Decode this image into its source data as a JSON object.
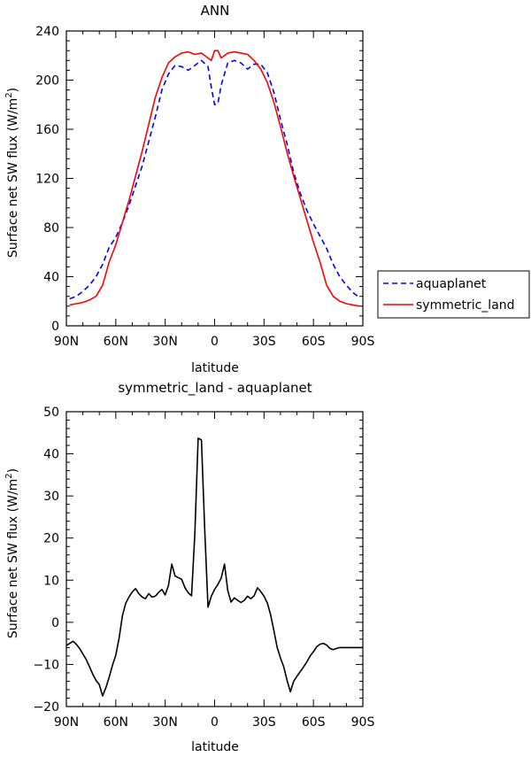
{
  "chart_data": [
    {
      "type": "line",
      "title": "ANN",
      "xlabel": "latitude",
      "ylabel": "Surface net SW flux (W/m²)",
      "ylabel_main": "Surface net SW flux (W/m",
      "ylabel_sup": "2",
      "ylabel_end": ")",
      "xlim": [
        -90,
        90
      ],
      "ylim": [
        0,
        240
      ],
      "x_ticks": [
        -90,
        -60,
        -30,
        0,
        30,
        60,
        90
      ],
      "x_tick_labels": [
        "90N",
        "60N",
        "30N",
        "0",
        "30S",
        "60S",
        "90S"
      ],
      "y_ticks": [
        0,
        40,
        80,
        120,
        160,
        200,
        240
      ],
      "y_tick_labels": [
        "0",
        "40",
        "80",
        "120",
        "160",
        "200",
        "240"
      ],
      "legend_position": "right",
      "series": [
        {
          "name": "aquaplanet",
          "color": "#0000ff",
          "dash": "dashed",
          "x": [
            -88,
            -84,
            -80,
            -76,
            -72,
            -68,
            -64,
            -60,
            -56,
            -52,
            -48,
            -44,
            -40,
            -36,
            -32,
            -28,
            -24,
            -20,
            -16,
            -12,
            -8,
            -4,
            -2,
            0,
            2,
            4,
            8,
            12,
            16,
            20,
            24,
            28,
            32,
            36,
            40,
            44,
            48,
            52,
            56,
            60,
            64,
            68,
            72,
            76,
            80,
            84,
            88
          ],
          "y": [
            22,
            24,
            28,
            33,
            40,
            50,
            64,
            72,
            84,
            98,
            114,
            130,
            150,
            170,
            192,
            205,
            212,
            211,
            208,
            212,
            216,
            211,
            194,
            180,
            181,
            196,
            214,
            216,
            214,
            209,
            213,
            213,
            206,
            190,
            168,
            148,
            125,
            108,
            94,
            83,
            73,
            63,
            50,
            40,
            33,
            27,
            23
          ]
        },
        {
          "name": "symmetric_land",
          "color": "#ff0000",
          "dash": "solid",
          "x": [
            -88,
            -84,
            -80,
            -76,
            -72,
            -68,
            -64,
            -60,
            -56,
            -52,
            -48,
            -44,
            -40,
            -36,
            -32,
            -28,
            -24,
            -20,
            -16,
            -12,
            -8,
            -4,
            -2,
            0,
            2,
            4,
            8,
            12,
            16,
            20,
            24,
            28,
            32,
            36,
            40,
            44,
            48,
            52,
            56,
            60,
            64,
            68,
            72,
            76,
            80,
            84,
            88
          ],
          "y": [
            17,
            18,
            19,
            21,
            24,
            33,
            52,
            66,
            84,
            102,
            122,
            142,
            164,
            186,
            202,
            214,
            219,
            222,
            223,
            221,
            222,
            218,
            216,
            224,
            224,
            218,
            222,
            223,
            222,
            221,
            216,
            209,
            198,
            182,
            162,
            141,
            122,
            104,
            86,
            68,
            52,
            33,
            24,
            20,
            18,
            17,
            16
          ]
        }
      ]
    },
    {
      "type": "line",
      "title": "symmetric_land - aquaplanet",
      "xlabel": "latitude",
      "ylabel": "Surface net SW flux (W/m²)",
      "ylabel_main": "Surface net SW flux (W/m",
      "ylabel_sup": "2",
      "ylabel_end": ")",
      "xlim": [
        -90,
        90
      ],
      "ylim": [
        -20,
        50
      ],
      "x_ticks": [
        -90,
        -60,
        -30,
        0,
        30,
        60,
        90
      ],
      "x_tick_labels": [
        "90N",
        "60N",
        "30N",
        "0",
        "30S",
        "60S",
        "90S"
      ],
      "y_ticks": [
        -20,
        -10,
        0,
        10,
        20,
        30,
        40,
        50
      ],
      "y_tick_labels": [
        "−20",
        "−10",
        "0",
        "10",
        "20",
        "30",
        "40",
        "50"
      ],
      "series": [
        {
          "color": "#000000",
          "dash": "solid",
          "x": [
            -90,
            -88,
            -86,
            -84,
            -82,
            -80,
            -78,
            -76,
            -74,
            -72,
            -70,
            -68,
            -66,
            -64,
            -62,
            -60,
            -58,
            -56,
            -54,
            -52,
            -50,
            -48,
            -46,
            -44,
            -42,
            -40,
            -38,
            -36,
            -34,
            -32,
            -30,
            -28,
            -26,
            -24,
            -22,
            -20,
            -18,
            -16,
            -14,
            -12,
            -10,
            -8,
            -6,
            -4,
            -2,
            0,
            2,
            4,
            6,
            8,
            10,
            12,
            14,
            16,
            18,
            20,
            22,
            24,
            26,
            28,
            30,
            32,
            34,
            36,
            38,
            40,
            42,
            44,
            46,
            48,
            50,
            52,
            54,
            56,
            58,
            60,
            62,
            64,
            66,
            68,
            70,
            72,
            74,
            76,
            78,
            80,
            82,
            84,
            86,
            88,
            90
          ],
          "y": [
            -5.5,
            -5,
            -4.5,
            -5.2,
            -6.2,
            -7.5,
            -8.8,
            -10.5,
            -12.3,
            -13.8,
            -14.8,
            -17.5,
            -15.5,
            -13,
            -10.2,
            -7.8,
            -3.8,
            1.5,
            4.5,
            6,
            7.2,
            8,
            6.8,
            6,
            5.6,
            6.8,
            6,
            6.2,
            7.1,
            7.8,
            6.5,
            8.8,
            13.8,
            11,
            10.6,
            10.2,
            8.2,
            7,
            6.3,
            21,
            43.7,
            43.3,
            22,
            3.6,
            6.2,
            7.8,
            9,
            10.5,
            13.8,
            7.5,
            4.8,
            5.8,
            5.2,
            4.7,
            5.2,
            6.2,
            5.6,
            6.3,
            8.2,
            7.3,
            6.2,
            4.6,
            1.8,
            -2,
            -6,
            -8.5,
            -10.6,
            -13.8,
            -16.5,
            -14,
            -12.8,
            -11.7,
            -10.6,
            -9.4,
            -8,
            -7,
            -5.8,
            -5.2,
            -5,
            -5.4,
            -6.2,
            -6.5,
            -6.2,
            -6,
            -6,
            -6,
            -6,
            -6,
            -6,
            -6,
            -6
          ]
        }
      ]
    }
  ]
}
